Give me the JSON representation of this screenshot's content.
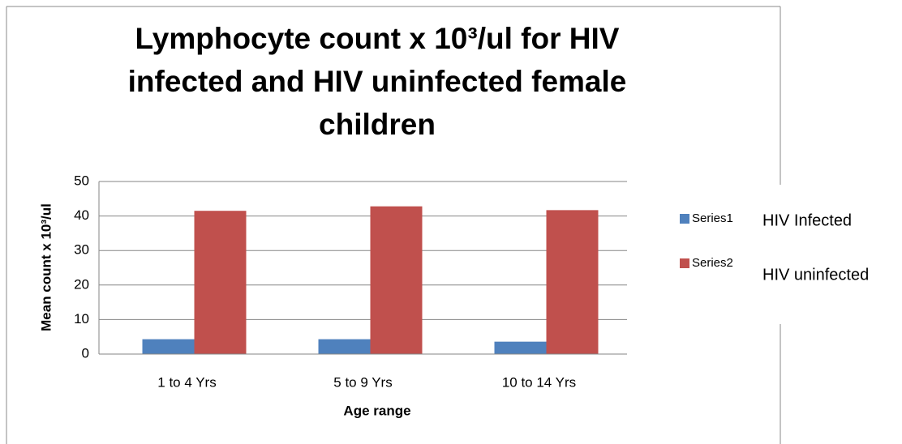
{
  "chart_data": {
    "type": "bar",
    "title": "Lymphocyte count x 10³/ul for HIV infected and HIV uninfected female children",
    "x_label": "Age range",
    "y_label": "Mean count x 10³/ul",
    "categories": [
      "1 to 4 Yrs",
      "5 to 9 Yrs",
      "10 to 14 Yrs"
    ],
    "series": [
      {
        "name": "HIV Infected",
        "color": "#4f81bd",
        "values": [
          4.3,
          4.3,
          3.6
        ]
      },
      {
        "name": "HIV uninfected",
        "color": "#c0504d",
        "values": [
          41.5,
          42.8,
          41.7
        ]
      }
    ],
    "legend_underlying_labels": [
      "Series1",
      "Series2"
    ],
    "ylim": [
      0,
      50
    ],
    "yticks": [
      0,
      10,
      20,
      30,
      40,
      50
    ],
    "grid": true,
    "legend": "right"
  }
}
